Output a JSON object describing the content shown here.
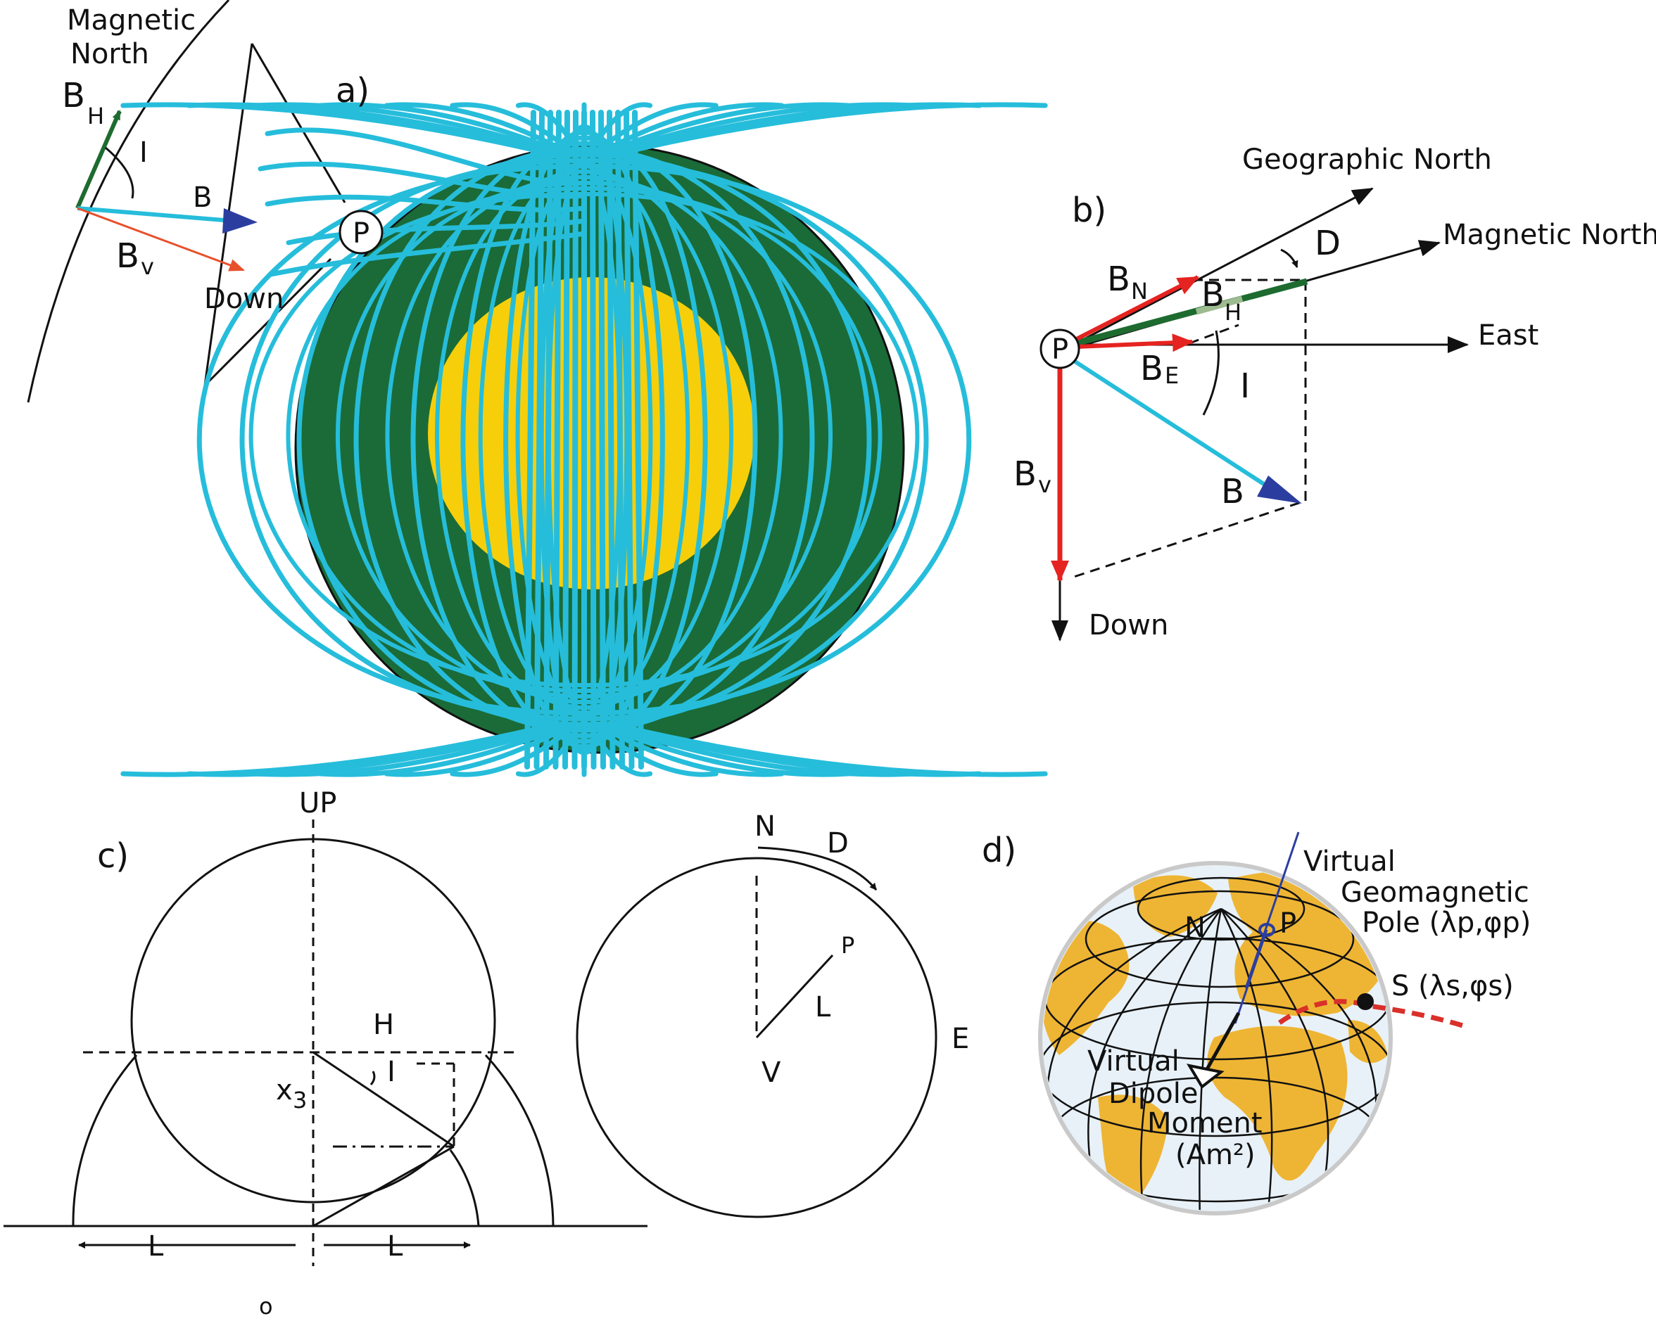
{
  "colors": {
    "field_lines": "#26bddb",
    "mantle": "#1a6b38",
    "core": "#f6cf0a",
    "vector_red": "#e52320",
    "vector_orange": "#e8502b",
    "bh_green": "#1e6b30",
    "arrow_blue": "#2b3ea0",
    "continent": "#eeb534",
    "ocean": "#e8f1f8",
    "site_path": "#d9302a"
  },
  "panel_a": {
    "label": "a)",
    "magnetic_north": [
      "Magnetic",
      "North"
    ],
    "bh": "B",
    "bh_sub": "H",
    "inclination": "I",
    "b": "B",
    "bv": "B",
    "bv_sub": "v",
    "down": "Down",
    "point": "P"
  },
  "panel_b": {
    "label": "b)",
    "geographic_north": "Geographic North",
    "magnetic_north": "Magnetic North",
    "declination": "D",
    "bn": "B",
    "bn_sub": "N",
    "bh": "B",
    "bh_sub": "H",
    "east": "East",
    "be": "B",
    "be_sub": "E",
    "inclination": "I",
    "bv": "B",
    "bv_sub": "v",
    "b": "B",
    "down": "Down",
    "point": "P"
  },
  "panel_c": {
    "label": "c)",
    "up": "UP",
    "h": "H",
    "i": "I",
    "x3": "x",
    "x3_sub": "3",
    "l_left": "L",
    "l_right": "L",
    "degree": "o",
    "n": "N",
    "d": "D",
    "p": "P",
    "l": "L",
    "v": "V",
    "e": "E"
  },
  "panel_d": {
    "label": "d)",
    "vgp": [
      "Virtual",
      "Geomagnetic",
      "Pole (λp,φp)"
    ],
    "site": "S (λs,φs)",
    "n": "N",
    "p": "P",
    "vdm": [
      "Virtual",
      "Dipole",
      "Moment",
      "(Am²)"
    ]
  }
}
